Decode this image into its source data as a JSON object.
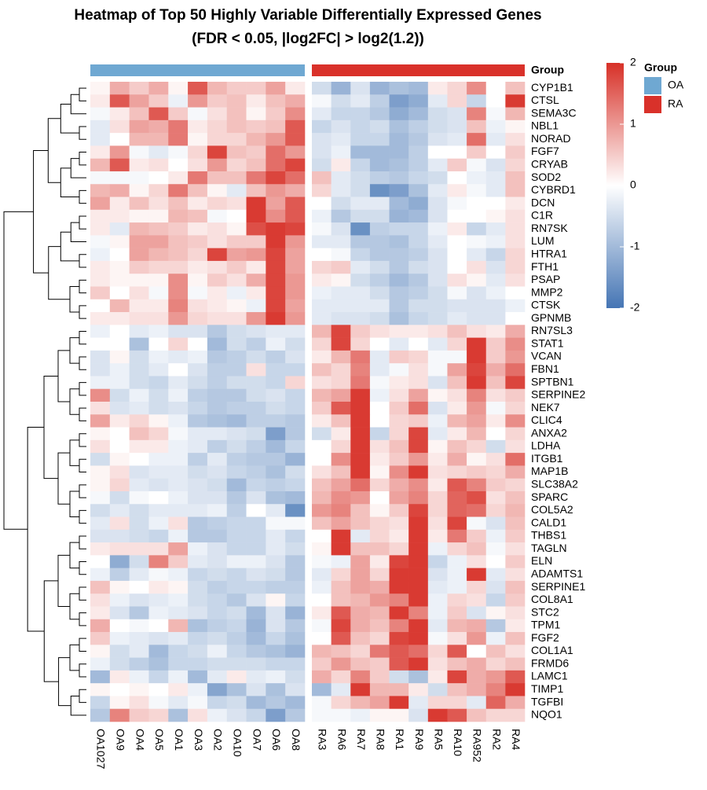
{
  "chart_data": {
    "type": "heatmap",
    "title": "Heatmap of Top 50 Highly Variable Differentially Expressed Genes",
    "subtitle": "(FDR < 0.05, |log2FC| > log2(1.2))",
    "group_title": "Group",
    "groups": [
      {
        "name": "OA",
        "color": "#6fa8d2",
        "samples": [
          "OA1027",
          "OA9",
          "OA4",
          "OA5",
          "OA1",
          "OA3",
          "OA2",
          "OA10",
          "OA7",
          "OA6",
          "OA8"
        ]
      },
      {
        "name": "RA",
        "color": "#d9312a",
        "samples": [
          "RA3",
          "RA6",
          "RA7",
          "RA8",
          "RA1",
          "RA9",
          "RA5",
          "RA10",
          "RA952",
          "RA2",
          "RA4"
        ]
      }
    ],
    "rows": [
      "CYP1B1",
      "CTSL",
      "SEMA3C",
      "NBL1",
      "NORAD",
      "FGF7",
      "CRYAB",
      "SOD2",
      "CYBRD1",
      "DCN",
      "C1R",
      "RN7SK",
      "LUM",
      "HTRA1",
      "FTH1",
      "PSAP",
      "MMP2",
      "CTSK",
      "GPNMB",
      "RN7SL3",
      "STAT1",
      "VCAN",
      "FBN1",
      "SPTBN1",
      "SERPINE2",
      "NEK7",
      "CLIC4",
      "ANXA2",
      "LDHA",
      "ITGB1",
      "MAP1B",
      "SLC38A2",
      "SPARC",
      "COL5A2",
      "CALD1",
      "THBS1",
      "TAGLN",
      "ELN",
      "ADAMTS1",
      "SERPINE1",
      "COL8A1",
      "STC2",
      "TPM1",
      "FGF2",
      "COL1A1",
      "FRMD6",
      "LAMC1",
      "TIMP1",
      "TGFBI",
      "NQO1"
    ],
    "values": [
      [
        0.1,
        0.8,
        0.5,
        0.8,
        0.1,
        1.6,
        0.7,
        0.5,
        0.5,
        0.9,
        0.2,
        -0.5,
        -1.1,
        -0.4,
        -1.1,
        -0.9,
        -1.0,
        0.2,
        0.4,
        1.1,
        0,
        0.6
      ],
      [
        0.2,
        1.6,
        0.9,
        0.5,
        -0.2,
        1.0,
        0.5,
        0.6,
        0.2,
        0.6,
        0.8,
        -0.1,
        -0.5,
        -0.3,
        -0.7,
        -1.4,
        -1.2,
        -0.3,
        0.4,
        -0.6,
        0,
        1.9
      ],
      [
        -0.1,
        0.2,
        0.6,
        1.6,
        0.5,
        -0.1,
        0.3,
        0.6,
        0.1,
        0.5,
        1.1,
        -0.3,
        -0.6,
        -0.6,
        -0.8,
        -1.2,
        -1.0,
        -0.5,
        -0.4,
        1.2,
        -0.1,
        0.7
      ],
      [
        -0.3,
        0.3,
        0.9,
        0.8,
        1.3,
        0.2,
        0.4,
        0.6,
        0.5,
        0.6,
        1.6,
        -0.6,
        -0.4,
        -0.6,
        -0.5,
        -0.9,
        -0.7,
        -0.5,
        -0.4,
        0.6,
        -0.2,
        0.1
      ],
      [
        -0.3,
        0,
        0.7,
        0.7,
        1.3,
        0.1,
        0.4,
        0.4,
        0.7,
        1.0,
        1.6,
        -0.4,
        -0.3,
        -0.6,
        -0.6,
        -1.0,
        -0.8,
        -0.4,
        -0.3,
        1.4,
        -0.3,
        0.3
      ],
      [
        0.2,
        1.0,
        -0.1,
        -0.3,
        -0.1,
        0.4,
        1.8,
        0.6,
        0.5,
        1.4,
        1.0,
        -0.4,
        -0.2,
        -1.0,
        -1.0,
        -1.0,
        -0.7,
        0,
        0,
        0.5,
        0,
        0.5
      ],
      [
        0.7,
        1.6,
        0.2,
        0.3,
        0,
        0.3,
        1.0,
        0.4,
        0.6,
        1.4,
        1.8,
        -0.5,
        0.2,
        -0.6,
        -1.0,
        -0.9,
        -0.7,
        -0.3,
        0.5,
        -0.1,
        -0.4,
        0.4
      ],
      [
        -0.1,
        -0.1,
        -0.1,
        0,
        0.2,
        1.3,
        0.6,
        0.6,
        1.3,
        1.8,
        1.4,
        0.6,
        -0.3,
        -0.5,
        -0.7,
        -0.8,
        -0.6,
        -0.5,
        0,
        -0.2,
        -0.3,
        0.6
      ],
      [
        0.7,
        0.8,
        0.1,
        0.4,
        1.3,
        0.6,
        0.1,
        -0.3,
        0.6,
        1.0,
        0.8,
        0.4,
        -0.3,
        -0.5,
        -1.6,
        -1.4,
        -0.9,
        -0.3,
        0.2,
        -0.1,
        -0.3,
        0.6
      ],
      [
        0.9,
        0.2,
        0.6,
        0.3,
        0.6,
        0.2,
        0.4,
        0.3,
        1.9,
        0.9,
        1.6,
        0,
        -0.5,
        -0.3,
        -0.3,
        -1.0,
        -1.2,
        -0.4,
        -0.1,
        0,
        0,
        0.2
      ],
      [
        0.2,
        0.2,
        0.1,
        0.1,
        0.7,
        0.6,
        -0.1,
        0,
        1.9,
        1.1,
        1.6,
        -0.2,
        -0.8,
        -0.5,
        -0.5,
        -1.1,
        -1.0,
        -0.4,
        0,
        0,
        0.1,
        0.3
      ],
      [
        0.2,
        -0.3,
        0.7,
        0.6,
        0.5,
        0.2,
        0.3,
        0.1,
        1.7,
        1.9,
        1.8,
        -0.1,
        -0.4,
        -1.6,
        -0.7,
        -0.6,
        -0.6,
        -0.2,
        0.2,
        -0.6,
        -0.3,
        0.3
      ],
      [
        -0.1,
        0.1,
        0.9,
        0.9,
        0.6,
        0.5,
        0.3,
        0.5,
        0.5,
        1.9,
        1.0,
        -0.3,
        -0.3,
        -0.8,
        -0.8,
        -0.9,
        -0.6,
        -0.3,
        0,
        -0.1,
        -0.2,
        0.3
      ],
      [
        -0.2,
        0,
        0.9,
        0.7,
        0.6,
        0.4,
        1.8,
        0.9,
        1.0,
        1.8,
        0.9,
        0,
        -0.1,
        -0.6,
        -0.8,
        -0.8,
        -0.7,
        -0.4,
        0,
        -0.3,
        -0.6,
        0.4
      ],
      [
        0.2,
        0.1,
        0.5,
        0.4,
        0.4,
        0.2,
        0.3,
        0.5,
        0.2,
        1.8,
        0.9,
        0.4,
        0.5,
        -0.3,
        -0.5,
        -0.8,
        -0.5,
        -0.4,
        0,
        0.3,
        -0.4,
        0.4
      ],
      [
        0.2,
        0.1,
        0.1,
        0.1,
        1.1,
        0.1,
        0.5,
        0.3,
        0.8,
        1.8,
        1.0,
        0.2,
        0.1,
        -0.5,
        -0.7,
        -1.0,
        -0.8,
        -0.4,
        0.3,
        0.1,
        -0.3,
        0.3
      ],
      [
        0.5,
        0,
        0.3,
        -0.1,
        1.1,
        -0.1,
        0.2,
        -0.2,
        0.2,
        1.8,
        1.0,
        -0.2,
        -0.3,
        -0.3,
        -0.5,
        -0.8,
        -0.7,
        -0.5,
        -0.1,
        -0.4,
        -0.2,
        0
      ],
      [
        0,
        0.7,
        0.2,
        0.2,
        1.2,
        0.3,
        0.2,
        0.1,
        -0.2,
        1.8,
        0.9,
        -0.3,
        -0.3,
        -0.3,
        -0.3,
        -0.8,
        -0.5,
        -0.5,
        -0.4,
        -0.4,
        -0.4,
        -0.2
      ],
      [
        0.2,
        0.2,
        0.3,
        0.3,
        1.0,
        0.4,
        0.3,
        0.3,
        1.0,
        1.9,
        1.0,
        -0.3,
        -0.4,
        -0.4,
        -0.5,
        -0.9,
        -0.6,
        -0.5,
        -0.3,
        -0.4,
        -0.4,
        0
      ],
      [
        -0.2,
        0,
        -0.3,
        -0.2,
        -0.4,
        -0.4,
        -0.8,
        -0.5,
        -0.4,
        -0.3,
        -0.3,
        0.7,
        1.8,
        0.5,
        0.3,
        0.2,
        0.2,
        0.3,
        0.6,
        0.3,
        0.2,
        0.8
      ],
      [
        0,
        0,
        -0.9,
        0,
        0.4,
        0,
        -1.0,
        -0.5,
        -0.7,
        -0.2,
        -0.5,
        0.4,
        1.8,
        0.4,
        0,
        -0.3,
        0,
        -0.3,
        0.4,
        1.9,
        0.5,
        1.1
      ],
      [
        -0.4,
        0.1,
        -0.5,
        -0.2,
        -0.3,
        -0.2,
        -0.8,
        -0.7,
        -0.5,
        -0.7,
        -0.4,
        0.2,
        0.7,
        1.3,
        -0.3,
        0.5,
        0.4,
        -0.1,
        -0.1,
        1.9,
        0.5,
        1.0
      ],
      [
        -0.4,
        -0.2,
        -0.5,
        -0.3,
        0,
        -0.4,
        -0.7,
        -0.7,
        0.3,
        -0.6,
        -0.6,
        0.6,
        0.4,
        1.2,
        -0.3,
        -0.1,
        0.3,
        -0.1,
        0.9,
        1.8,
        0.8,
        1.4
      ],
      [
        -0.2,
        -0.2,
        -0.5,
        -0.6,
        -0.3,
        -0.5,
        -0.7,
        -0.5,
        -0.5,
        -0.6,
        0.4,
        0.3,
        0.4,
        1.3,
        -0.1,
        0.2,
        0.3,
        -0.4,
        0.6,
        1.9,
        0.6,
        1.8
      ],
      [
        1.1,
        -0.5,
        -0.2,
        -0.5,
        -0.2,
        -0.7,
        -0.8,
        -0.8,
        -0.5,
        -0.4,
        -0.6,
        0.7,
        0.9,
        1.9,
        -0.2,
        0.3,
        0.9,
        0.1,
        0.3,
        1.2,
        0.3,
        0.5
      ],
      [
        0.3,
        -0.4,
        -0.3,
        -0.5,
        -0.4,
        -0.6,
        -0.8,
        -0.7,
        -0.7,
        -0.5,
        -0.6,
        0.5,
        1.6,
        1.9,
        0,
        0.5,
        1.4,
        -0.4,
        0.2,
        1.0,
        -0.1,
        0.4
      ],
      [
        0.9,
        0.2,
        0.4,
        0.1,
        -0.2,
        -0.8,
        -0.9,
        -1.0,
        -0.7,
        -0.7,
        -0.8,
        0.2,
        0.6,
        1.9,
        0,
        0.4,
        0.5,
        -0.2,
        0.7,
        0.9,
        0.2,
        1.1
      ],
      [
        0.1,
        0,
        0.6,
        0.4,
        -0.1,
        -0.3,
        -0.3,
        -0.4,
        -0.5,
        -1.4,
        -0.8,
        -0.5,
        0.2,
        1.9,
        -0.6,
        0.4,
        1.8,
        -0.3,
        0.2,
        0.7,
        0,
        0.4
      ],
      [
        0.3,
        0,
        0.2,
        0.2,
        -0.2,
        -0.3,
        -0.7,
        -0.5,
        -0.7,
        -1.0,
        -0.6,
        0,
        0.4,
        1.9,
        0.3,
        0.6,
        1.8,
        0.1,
        0.6,
        0.4,
        -0.5,
        0.3
      ],
      [
        -0.5,
        0.1,
        0,
        -0.2,
        -0.2,
        -0.7,
        -0.3,
        -0.7,
        -0.8,
        -0.8,
        -1.1,
        0,
        1.1,
        1.9,
        0.2,
        0.5,
        1.0,
        0.2,
        0.8,
        0.1,
        0.3,
        1.4
      ],
      [
        0.1,
        0.3,
        -0.4,
        -0.3,
        -0.3,
        -0.5,
        -0.4,
        -0.6,
        -0.7,
        -0.9,
        -0.5,
        0.3,
        0.6,
        1.9,
        0.1,
        1.1,
        1.9,
        0.3,
        0.4,
        0.5,
        0.4,
        0.8
      ],
      [
        0.1,
        0.4,
        -0.3,
        -0.4,
        -0.3,
        -0.4,
        -0.5,
        -1.0,
        -0.6,
        -0.7,
        -0.6,
        0.6,
        0.9,
        1.4,
        0.4,
        0.8,
        1.1,
        0.2,
        1.6,
        1.2,
        0.5,
        0.4
      ],
      [
        -0.1,
        -0.5,
        -0.1,
        0,
        -0.2,
        -0.4,
        -0.4,
        -0.8,
        -0.4,
        -0.9,
        -1.0,
        0.7,
        1.1,
        1.0,
        0,
        0.9,
        1.2,
        0.4,
        1.5,
        1.7,
        0.3,
        0.6
      ],
      [
        -0.5,
        -0.3,
        -0.5,
        -0.3,
        -0.3,
        -0.3,
        -0.2,
        -0.7,
        0,
        -0.3,
        -1.6,
        1.0,
        1.2,
        0.6,
        0.1,
        0.5,
        1.8,
        0.4,
        1.5,
        1.4,
        0.4,
        0.7
      ],
      [
        -0.3,
        0.3,
        -0.5,
        -0.2,
        0.3,
        -0.8,
        -0.7,
        -0.6,
        -0.6,
        -0.1,
        -0.1,
        0.6,
        0.9,
        0.6,
        0.4,
        0.3,
        1.9,
        0.3,
        1.8,
        -0.1,
        -0.4,
        0.6
      ],
      [
        -0.4,
        -0.4,
        -0.5,
        -0.6,
        -0.2,
        -0.8,
        -0.8,
        -0.6,
        -0.6,
        -0.3,
        -0.6,
        0,
        1.9,
        -0.3,
        0.4,
        0.2,
        1.9,
        0.2,
        1.3,
        0.5,
        -0.2,
        0.5
      ],
      [
        0.2,
        0.3,
        0.3,
        0.3,
        0.9,
        -0.2,
        -0.4,
        -0.6,
        -0.6,
        -0.3,
        -0.5,
        0.1,
        1.9,
        0.6,
        0.6,
        0.4,
        1.9,
        -0.2,
        0.4,
        0.6,
        -0.1,
        0.3
      ],
      [
        0,
        -1.2,
        -0.5,
        1.2,
        0.5,
        -0.3,
        -0.4,
        -0.2,
        -0.2,
        -0.4,
        -0.8,
        -0.1,
        -0.2,
        0.9,
        0.2,
        1.8,
        1.9,
        -0.6,
        -0.2,
        0.3,
        0,
        0.5
      ],
      [
        -0.2,
        -0.7,
        -0.3,
        -0.1,
        -0.2,
        -0.6,
        -0.5,
        -0.6,
        -0.4,
        -0.5,
        -0.8,
        -0.3,
        0.4,
        0.9,
        0.4,
        1.9,
        1.9,
        -0.4,
        -0.2,
        1.9,
        -0.3,
        0.3
      ],
      [
        0.6,
        0.1,
        0,
        0.2,
        0.1,
        -0.5,
        -0.7,
        -0.6,
        -0.6,
        -0.7,
        -0.7,
        -0.2,
        0.6,
        0.9,
        0.8,
        1.9,
        1.9,
        -0.3,
        -0.2,
        0.4,
        -0.4,
        0.6
      ],
      [
        0.3,
        -0.2,
        -0.4,
        -0.3,
        -0.2,
        -0.5,
        -0.6,
        -0.8,
        -0.4,
        0.1,
        -0.6,
        0,
        0.6,
        0.7,
        1.0,
        1.2,
        1.9,
        -0.2,
        0.4,
        0.3,
        -0.6,
        0.5
      ],
      [
        0.2,
        -0.4,
        -0.8,
        -0.2,
        -0.3,
        -0.4,
        -0.6,
        -0.5,
        -1.0,
        -0.4,
        -1.1,
        0.2,
        1.6,
        0.8,
        0.7,
        1.9,
        1.2,
        -0.2,
        0.5,
        -0.4,
        0.1,
        0.3
      ],
      [
        0.8,
        0,
        -0.1,
        0,
        0.7,
        -0.9,
        -0.7,
        -0.6,
        -1.1,
        -0.4,
        -0.8,
        -0.1,
        1.8,
        0.8,
        0.6,
        1.2,
        1.9,
        -0.3,
        0.7,
        0.8,
        -0.8,
        0.2
      ],
      [
        0.5,
        -0.2,
        -0.3,
        -0.4,
        -0.3,
        -0.6,
        -0.5,
        -0.7,
        -1.0,
        -0.6,
        -0.9,
        0,
        1.6,
        0.6,
        0.4,
        1.8,
        1.9,
        -0.1,
        0.3,
        1.0,
        -0.2,
        0.6
      ],
      [
        0.1,
        -0.5,
        -0.3,
        -1.0,
        -0.6,
        -0.5,
        -0.2,
        -0.6,
        -0.8,
        -0.9,
        -1.1,
        0.7,
        0.6,
        0.4,
        1.3,
        1.6,
        1.4,
        0.4,
        1.6,
        0,
        0.6,
        0.3
      ],
      [
        -0.2,
        -0.5,
        -0.7,
        -0.9,
        -0.6,
        -0.6,
        -0.5,
        -0.5,
        -0.5,
        -0.6,
        -0.6,
        0.5,
        1.0,
        0.6,
        0.5,
        1.6,
        1.9,
        0.3,
        0.6,
        0.8,
        0.4,
        0.6
      ],
      [
        -1.0,
        0.2,
        -0.2,
        -0.6,
        -0.2,
        -1.0,
        -0.3,
        0.2,
        -0.3,
        -0.2,
        -0.5,
        0.8,
        0.4,
        1.2,
        0.5,
        -0.5,
        -0.9,
        0.2,
        1.8,
        0.8,
        1.0,
        1.6
      ],
      [
        0.1,
        0,
        0.1,
        0,
        0.2,
        -0.2,
        -1.3,
        -0.9,
        -0.4,
        -0.9,
        -0.4,
        -1.0,
        -0.3,
        1.9,
        0.7,
        0.7,
        0.2,
        -0.5,
        0.6,
        0.8,
        1.2,
        1.9
      ],
      [
        -0.6,
        0.1,
        0.3,
        -0.1,
        -0.3,
        -0.1,
        -0.6,
        -0.5,
        -1.0,
        -0.8,
        -1.0,
        -0.1,
        0.4,
        0.7,
        0.9,
        1.9,
        -0.3,
        0.4,
        0.4,
        -0.3,
        1.5,
        0.8
      ],
      [
        -0.8,
        1.2,
        0.5,
        0.4,
        -0.9,
        0.3,
        -0.2,
        -0.4,
        -0.6,
        -1.4,
        -0.8,
        -0.1,
        -0.1,
        -0.2,
        0.1,
        0.1,
        -0.4,
        1.9,
        1.6,
        0.6,
        0.4,
        0.4
      ]
    ],
    "colorbar": {
      "colors": [
        "#4575b4",
        "#ffffff",
        "#d73027"
      ],
      "lim": [
        -2,
        2
      ],
      "ticks": [
        2,
        1,
        0,
        -1,
        -2
      ]
    }
  }
}
